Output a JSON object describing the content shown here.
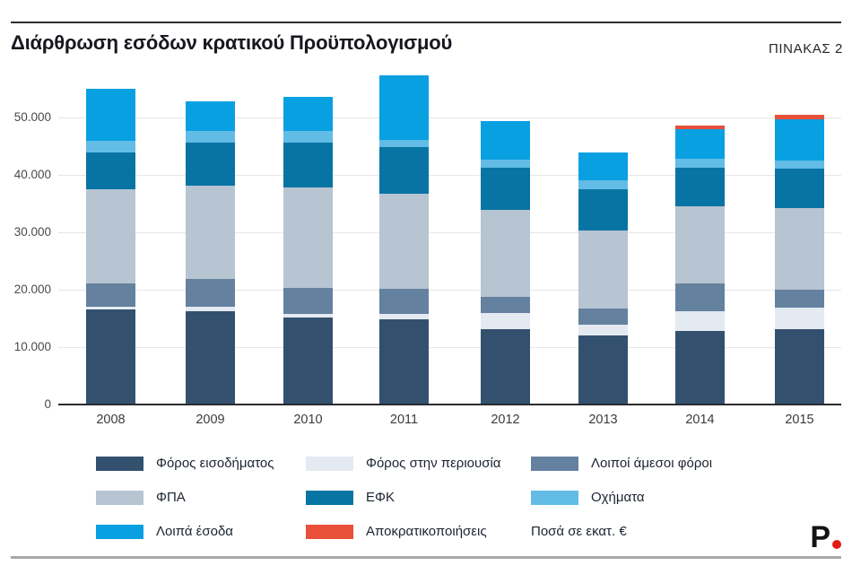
{
  "header": {
    "title": "Διάρθρωση εσόδων κρατικού Προϋπολογισμού",
    "table_label": "ΠΙΝΑΚΑΣ 2"
  },
  "chart_data": {
    "type": "bar",
    "stacked": true,
    "title": "Διάρθρωση εσόδων κρατικού Προϋπολογισμού",
    "unit_note": "Ποσά σε εκατ. €",
    "categories": [
      "2008",
      "2009",
      "2010",
      "2011",
      "2012",
      "2013",
      "2014",
      "2015"
    ],
    "series": [
      {
        "name": "Φόρος εισοδήματος",
        "color": "#33516e",
        "values": [
          16600,
          16300,
          15200,
          14800,
          13100,
          12000,
          12800,
          13100
        ]
      },
      {
        "name": "Φόρος στην περιουσία",
        "color": "#e4eaf1",
        "values": [
          400,
          700,
          600,
          1000,
          2800,
          1900,
          3500,
          3800
        ]
      },
      {
        "name": "Λοιποί άμεσοι φόροι",
        "color": "#64819f",
        "values": [
          4100,
          4900,
          4500,
          4400,
          2900,
          2800,
          4800,
          3100
        ]
      },
      {
        "name": "ΦΠΑ",
        "color": "#b7c4d2",
        "values": [
          16400,
          16200,
          17500,
          16500,
          15100,
          13600,
          13400,
          14200
        ]
      },
      {
        "name": "ΕΦΚ",
        "color": "#0874a4",
        "values": [
          6400,
          7500,
          7800,
          8100,
          7400,
          7200,
          6800,
          6900
        ]
      },
      {
        "name": "Οχήματα",
        "color": "#62bce6",
        "values": [
          2000,
          2100,
          2100,
          1300,
          1400,
          1600,
          1500,
          1400
        ]
      },
      {
        "name": "Λοιπά έσοδα",
        "color": "#09a0e2",
        "values": [
          9100,
          5100,
          5900,
          11200,
          6700,
          4800,
          5200,
          7200
        ]
      },
      {
        "name": "Αποκρατικοποιήσεις",
        "color": "#e8503a",
        "values": [
          0,
          0,
          0,
          0,
          0,
          0,
          600,
          800
        ]
      }
    ],
    "yticks": [
      {
        "label": "0",
        "value": 0
      },
      {
        "label": "10.000",
        "value": 10000
      },
      {
        "label": "20.000",
        "value": 20000
      },
      {
        "label": "30.000",
        "value": 30000
      },
      {
        "label": "40.000",
        "value": 40000
      },
      {
        "label": "50.000",
        "value": 50000
      }
    ],
    "ylim": [
      0,
      57500
    ],
    "grid": true,
    "legend_position": "bottom"
  },
  "footer": {
    "logo_text": "P",
    "logo_dot_color": "#e41b13"
  }
}
